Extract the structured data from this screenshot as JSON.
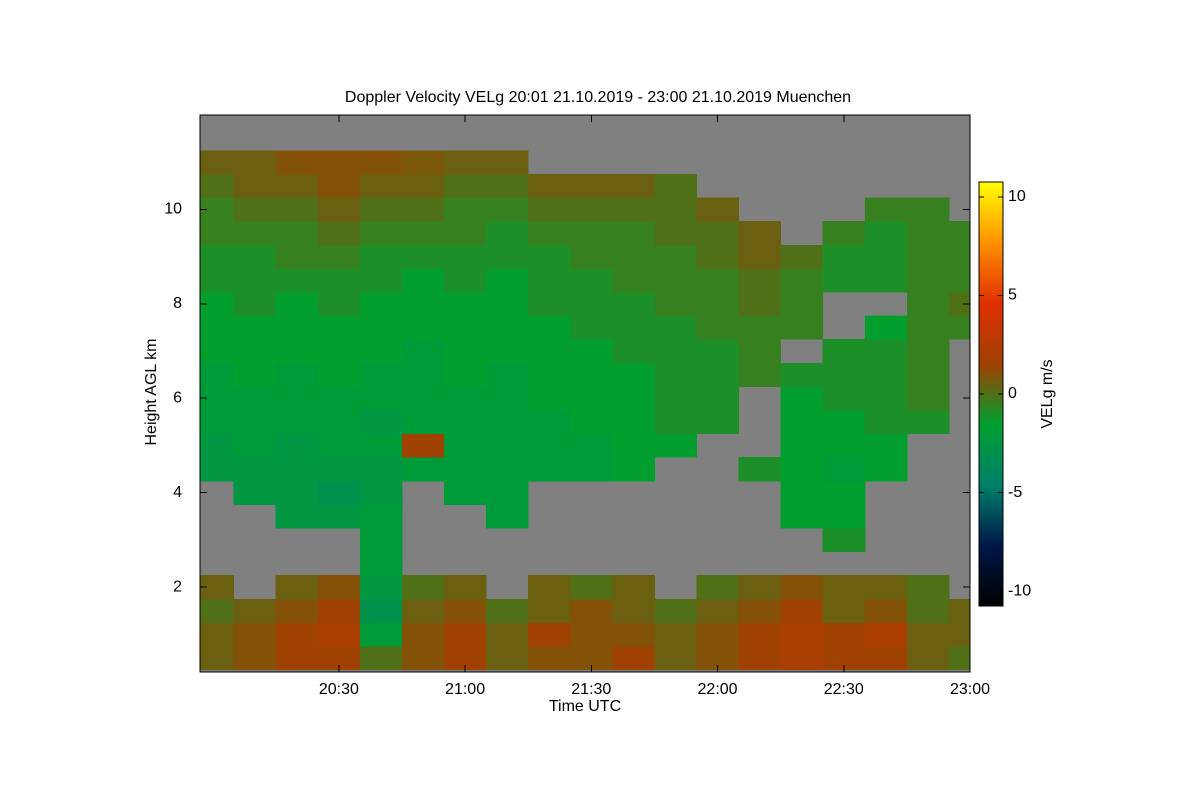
{
  "chart_data": {
    "type": "heatmap",
    "title": "Doppler Velocity VELg   20:01 21.10.2019 - 23:00 21.10.2019 Muenchen",
    "x_label": "Time UTC",
    "y_label": "Height AGL km",
    "background": "#808080",
    "xlim": [
      19.95,
      23
    ],
    "xticks": [
      {
        "value": 20.5,
        "label": "20:30"
      },
      {
        "value": 21,
        "label": "21:00"
      },
      {
        "value": 21.5,
        "label": "21:30"
      },
      {
        "value": 22,
        "label": "22:00"
      },
      {
        "value": 22.5,
        "label": "22:30"
      },
      {
        "value": 23,
        "label": "23:00"
      }
    ],
    "ylim": [
      0.2,
      12
    ],
    "yticks": [
      2,
      4,
      6,
      8,
      10
    ],
    "x": [
      20,
      20.1667,
      20.3333,
      20.5,
      20.6667,
      20.8333,
      21,
      21.1667,
      21.3333,
      21.5,
      21.6667,
      21.8333,
      22,
      22.1667,
      22.3333,
      22.5,
      22.6667,
      22.8333,
      23
    ],
    "y": [
      0.5,
      1,
      1.5,
      2,
      2.5,
      3,
      3.5,
      4,
      4.5,
      5,
      5.5,
      6,
      6.5,
      7,
      7.5,
      8,
      8.5,
      9,
      9.5,
      10,
      10.5,
      11,
      11.5
    ],
    "z": [
      [
        0.5,
        1,
        1.5,
        1.5,
        0,
        1,
        1.5,
        0.5,
        1,
        1,
        1.5,
        0.5,
        1,
        1.5,
        2,
        1.5,
        1.5,
        0.5,
        0
      ],
      [
        0.5,
        1,
        1.5,
        2,
        -2,
        1,
        1.5,
        0.5,
        1.5,
        1,
        1,
        0.5,
        1,
        1.5,
        2,
        1.5,
        2,
        0.5,
        0.5
      ],
      [
        0,
        0.5,
        1,
        1.5,
        -3,
        0.5,
        1,
        0,
        0.5,
        1,
        0.5,
        0,
        0.5,
        1,
        1.5,
        0.5,
        1,
        0,
        0.5
      ],
      [
        0.5,
        null,
        0.5,
        1,
        -2.5,
        0,
        0.5,
        null,
        0.5,
        0,
        0.5,
        null,
        0,
        0.5,
        1,
        0.5,
        0.5,
        0,
        null
      ],
      [
        null,
        null,
        null,
        null,
        -2,
        null,
        null,
        null,
        null,
        null,
        null,
        null,
        null,
        null,
        null,
        null,
        null,
        null,
        null
      ],
      [
        null,
        null,
        null,
        null,
        -2,
        null,
        null,
        null,
        null,
        null,
        null,
        null,
        null,
        null,
        null,
        -1,
        null,
        null,
        null
      ],
      [
        null,
        null,
        -2.5,
        -2.5,
        -2,
        null,
        null,
        -2,
        null,
        null,
        null,
        null,
        null,
        null,
        -1.5,
        -1.5,
        null,
        null,
        null
      ],
      [
        null,
        -2.5,
        -2.5,
        -3,
        -2.5,
        null,
        -2,
        -2,
        null,
        null,
        null,
        null,
        null,
        null,
        -1.5,
        -1.5,
        null,
        null,
        null
      ],
      [
        -2.5,
        -2.5,
        -2.5,
        -2.5,
        -2.5,
        -2,
        -2,
        -2,
        -2,
        -2,
        -1.5,
        null,
        null,
        -1,
        -1.5,
        -2,
        -1.5,
        null,
        null
      ],
      [
        -2.5,
        -2,
        -2.5,
        -2,
        -2,
        1.5,
        -2,
        -2,
        -2,
        -2,
        -1.5,
        -1.5,
        null,
        null,
        -1.5,
        -1.5,
        -1.5,
        null,
        null
      ],
      [
        -2,
        -2,
        -2,
        -2,
        -2.5,
        -2,
        -2,
        -2,
        -2,
        -1.5,
        -1.5,
        -1,
        -1,
        null,
        -1.5,
        -1.5,
        -1,
        -1,
        null
      ],
      [
        -2,
        -2,
        -2,
        -2,
        -2,
        -2,
        -2,
        -2,
        -1.5,
        -1.5,
        -1.5,
        -1,
        -1,
        null,
        -1.5,
        -1,
        -1,
        -0.5,
        null
      ],
      [
        -2,
        -1.5,
        -2,
        -1.5,
        -2,
        -2,
        -1.5,
        -2,
        -1.5,
        -1.5,
        -1.5,
        -1,
        -1,
        -0.5,
        -1,
        -1,
        -1,
        -0.5,
        null
      ],
      [
        -1.5,
        -1.5,
        -1.5,
        -1.5,
        -1.5,
        -2,
        -1.5,
        -1.5,
        -1.5,
        -1.5,
        -1,
        -1,
        -1,
        -0.5,
        null,
        -1,
        -1,
        -0.5,
        null
      ],
      [
        -1.5,
        -1.5,
        -1.5,
        -1.5,
        -1.5,
        -1.5,
        -1.5,
        -1.5,
        -1.5,
        -1,
        -1,
        -1,
        -0.5,
        -0.5,
        -0.5,
        null,
        -1.5,
        -0.5,
        -0.5
      ],
      [
        -1.5,
        -1,
        -1.5,
        -1,
        -1.5,
        -1.5,
        -1.5,
        -1.5,
        -1,
        -1,
        -1,
        -0.5,
        -0.5,
        0,
        -0.5,
        null,
        null,
        -0.5,
        0
      ],
      [
        -1,
        -1,
        -1,
        -1,
        -1,
        -1.5,
        -1,
        -1.5,
        -1,
        -1,
        -0.5,
        -0.5,
        -0.5,
        0,
        -0.5,
        -1,
        -1,
        -0.5,
        -0.5
      ],
      [
        -1,
        -1,
        -0.5,
        -0.5,
        -1,
        -1,
        -1,
        -1,
        -1,
        -0.5,
        -0.5,
        -0.5,
        0,
        0.5,
        0,
        -1,
        -1,
        -0.5,
        -0.5
      ],
      [
        -0.5,
        -0.5,
        -0.5,
        0,
        -0.5,
        -0.5,
        -0.5,
        -1,
        -0.5,
        -0.5,
        -0.5,
        0,
        0,
        0.5,
        null,
        -0.5,
        -1,
        -0.5,
        -0.5
      ],
      [
        -0.5,
        0,
        0,
        0.5,
        0,
        0,
        -0.5,
        -0.5,
        0,
        0,
        0,
        0,
        0.5,
        null,
        null,
        null,
        -0.5,
        -0.5,
        null
      ],
      [
        0,
        0.5,
        0.5,
        1,
        0.5,
        0.5,
        0,
        0,
        0.5,
        0.5,
        0.5,
        0,
        null,
        null,
        null,
        null,
        null,
        null,
        null
      ],
      [
        0.5,
        0.5,
        1,
        1,
        1,
        0.8,
        0.5,
        0.5,
        null,
        null,
        null,
        null,
        null,
        null,
        null,
        null,
        null,
        null,
        null
      ],
      [
        null,
        null,
        null,
        null,
        null,
        null,
        null,
        null,
        null,
        null,
        null,
        null,
        null,
        null,
        null,
        null,
        null,
        null,
        null
      ]
    ],
    "colorbar": {
      "label": "VELg m/s",
      "zlim": [
        -10.75,
        10.75
      ],
      "ticks": [
        -10,
        -5,
        0,
        5,
        10
      ],
      "colormap": [
        "#000000",
        "#001848",
        "#00806a",
        "#00a030",
        "#a04000",
        "#e03000",
        "#ff9000",
        "#ffff00"
      ]
    }
  }
}
